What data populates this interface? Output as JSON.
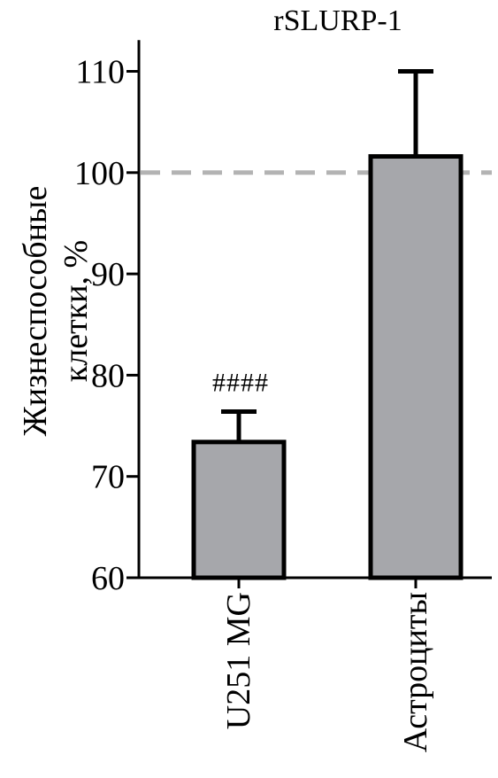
{
  "chart_data": {
    "type": "bar",
    "title": "rSLURP-1",
    "ylabel_lines": [
      "Жизнеспособные",
      "клетки, %"
    ],
    "xlabel": "",
    "categories": [
      "U251 MG",
      "Астроциты"
    ],
    "values": [
      73.4,
      101.6
    ],
    "errors": [
      3.0,
      8.4
    ],
    "ylim": [
      60,
      113
    ],
    "yticks": [
      "60",
      "70",
      "80",
      "90",
      "100",
      "110"
    ],
    "reference_line": 100,
    "annotations": [
      {
        "category": "U251 MG",
        "text": "####"
      }
    ],
    "grid": false,
    "legend": "none",
    "colors": {
      "bar_fill": "#a6a7ab",
      "bar_stroke": "#000000",
      "reference_line": "#b3b3b3",
      "axis": "#000000"
    }
  }
}
